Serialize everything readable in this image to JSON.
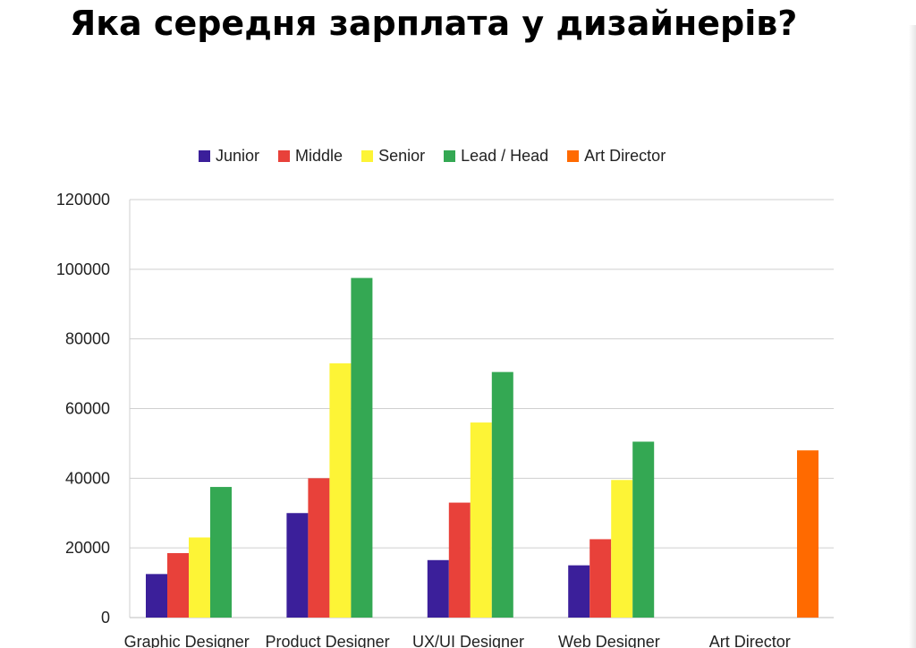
{
  "title": "Яка середня зарплата у дизайнерів?",
  "chart_data": {
    "type": "bar",
    "categories": [
      "Graphic Designer",
      "Product Designer",
      "UX/UI Designer",
      "Web Designer",
      "Art Director"
    ],
    "series": [
      {
        "name": "Junior",
        "color": "#3b1f9a",
        "values": [
          12500,
          30000,
          16500,
          15000,
          null
        ]
      },
      {
        "name": "Middle",
        "color": "#e8413a",
        "values": [
          18500,
          40000,
          33000,
          22500,
          null
        ]
      },
      {
        "name": "Senior",
        "color": "#fdf436",
        "values": [
          23000,
          73000,
          56000,
          39500,
          null
        ]
      },
      {
        "name": "Lead / Head",
        "color": "#34a853",
        "values": [
          37500,
          97500,
          70500,
          50500,
          null
        ]
      },
      {
        "name": "Art Director",
        "color": "#ff6a00",
        "values": [
          null,
          null,
          null,
          null,
          48000
        ]
      }
    ],
    "y_ticks": [
      "0",
      "20000",
      "40000",
      "60000",
      "80000",
      "100000",
      "120000"
    ],
    "ylim": [
      0,
      120000
    ],
    "grid": true,
    "legend_position": "top"
  }
}
